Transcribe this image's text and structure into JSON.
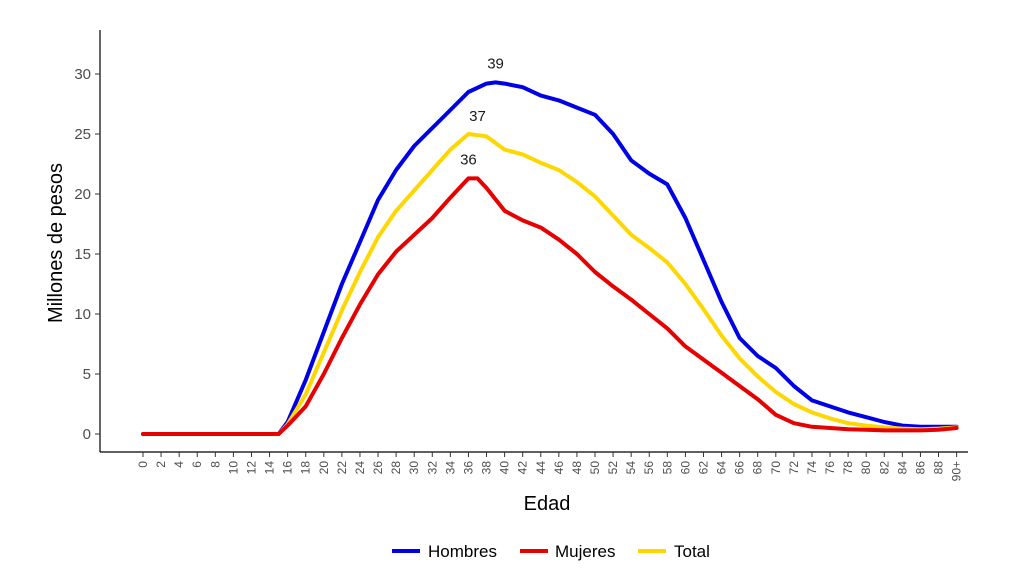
{
  "chart_data": {
    "type": "line",
    "xlabel": "Edad",
    "ylabel": "Millones de pesos",
    "ylim": [
      0,
      33
    ],
    "y_ticks": [
      0,
      5,
      10,
      15,
      20,
      25,
      30
    ],
    "x_tick_labels": [
      "0",
      "2",
      "4",
      "6",
      "8",
      "10",
      "12",
      "14",
      "16",
      "18",
      "20",
      "22",
      "24",
      "26",
      "28",
      "30",
      "32",
      "34",
      "36",
      "38",
      "40",
      "42",
      "44",
      "46",
      "48",
      "50",
      "52",
      "54",
      "56",
      "58",
      "60",
      "62",
      "64",
      "66",
      "68",
      "70",
      "72",
      "74",
      "76",
      "78",
      "80",
      "82",
      "84",
      "86",
      "88",
      "90+"
    ],
    "legend_position": "bottom",
    "grid": false,
    "series": [
      {
        "name": "Hombres",
        "color": "#0000e6",
        "points": [
          [
            0,
            0
          ],
          [
            2,
            0
          ],
          [
            4,
            0
          ],
          [
            6,
            0
          ],
          [
            8,
            0
          ],
          [
            10,
            0
          ],
          [
            12,
            0
          ],
          [
            14,
            0
          ],
          [
            15,
            0
          ],
          [
            16,
            1
          ],
          [
            18,
            4.5
          ],
          [
            20,
            8.5
          ],
          [
            22,
            12.5
          ],
          [
            24,
            16
          ],
          [
            26,
            19.5
          ],
          [
            28,
            22
          ],
          [
            30,
            24
          ],
          [
            32,
            25.5
          ],
          [
            34,
            27
          ],
          [
            36,
            28.5
          ],
          [
            38,
            29.2
          ],
          [
            39,
            29.3
          ],
          [
            40,
            29.2
          ],
          [
            42,
            28.9
          ],
          [
            44,
            28.2
          ],
          [
            46,
            27.8
          ],
          [
            48,
            27.2
          ],
          [
            50,
            26.6
          ],
          [
            52,
            25
          ],
          [
            54,
            22.8
          ],
          [
            56,
            21.7
          ],
          [
            58,
            20.8
          ],
          [
            60,
            18
          ],
          [
            62,
            14.5
          ],
          [
            64,
            11
          ],
          [
            66,
            8
          ],
          [
            68,
            6.5
          ],
          [
            70,
            5.5
          ],
          [
            72,
            4
          ],
          [
            74,
            2.8
          ],
          [
            76,
            2.3
          ],
          [
            78,
            1.8
          ],
          [
            80,
            1.4
          ],
          [
            82,
            1
          ],
          [
            84,
            0.7
          ],
          [
            86,
            0.6
          ],
          [
            88,
            0.6
          ],
          [
            90,
            0.6
          ]
        ]
      },
      {
        "name": "Mujeres",
        "color": "#e60000",
        "points": [
          [
            0,
            0
          ],
          [
            2,
            0
          ],
          [
            4,
            0
          ],
          [
            6,
            0
          ],
          [
            8,
            0
          ],
          [
            10,
            0
          ],
          [
            12,
            0
          ],
          [
            14,
            0
          ],
          [
            15,
            0
          ],
          [
            16,
            0.7
          ],
          [
            18,
            2.3
          ],
          [
            20,
            5
          ],
          [
            22,
            8
          ],
          [
            24,
            10.8
          ],
          [
            26,
            13.3
          ],
          [
            28,
            15.2
          ],
          [
            30,
            16.6
          ],
          [
            32,
            18
          ],
          [
            34,
            19.7
          ],
          [
            36,
            21.3
          ],
          [
            37,
            21.3
          ],
          [
            38,
            20.5
          ],
          [
            40,
            18.6
          ],
          [
            42,
            17.8
          ],
          [
            44,
            17.2
          ],
          [
            46,
            16.2
          ],
          [
            48,
            15
          ],
          [
            50,
            13.5
          ],
          [
            52,
            12.3
          ],
          [
            54,
            11.2
          ],
          [
            56,
            10
          ],
          [
            58,
            8.8
          ],
          [
            60,
            7.3
          ],
          [
            62,
            6.2
          ],
          [
            64,
            5.1
          ],
          [
            66,
            4
          ],
          [
            68,
            2.9
          ],
          [
            70,
            1.6
          ],
          [
            72,
            0.9
          ],
          [
            74,
            0.6
          ],
          [
            76,
            0.5
          ],
          [
            78,
            0.4
          ],
          [
            80,
            0.35
          ],
          [
            82,
            0.3
          ],
          [
            84,
            0.3
          ],
          [
            86,
            0.3
          ],
          [
            88,
            0.35
          ],
          [
            90,
            0.5
          ]
        ]
      },
      {
        "name": "Total",
        "color": "#ffd700",
        "points": [
          [
            0,
            0
          ],
          [
            2,
            0
          ],
          [
            4,
            0
          ],
          [
            6,
            0
          ],
          [
            8,
            0
          ],
          [
            10,
            0
          ],
          [
            12,
            0
          ],
          [
            14,
            0
          ],
          [
            15,
            0
          ],
          [
            16,
            0.8
          ],
          [
            18,
            3.3
          ],
          [
            20,
            6.8
          ],
          [
            22,
            10.3
          ],
          [
            24,
            13.5
          ],
          [
            26,
            16.4
          ],
          [
            28,
            18.6
          ],
          [
            30,
            20.3
          ],
          [
            32,
            22
          ],
          [
            34,
            23.7
          ],
          [
            36,
            25
          ],
          [
            37,
            24.9
          ],
          [
            38,
            24.8
          ],
          [
            40,
            23.7
          ],
          [
            42,
            23.3
          ],
          [
            44,
            22.6
          ],
          [
            46,
            22
          ],
          [
            48,
            21
          ],
          [
            50,
            19.8
          ],
          [
            52,
            18.2
          ],
          [
            54,
            16.6
          ],
          [
            56,
            15.5
          ],
          [
            58,
            14.3
          ],
          [
            60,
            12.5
          ],
          [
            62,
            10.4
          ],
          [
            64,
            8.2
          ],
          [
            66,
            6.3
          ],
          [
            68,
            4.8
          ],
          [
            70,
            3.5
          ],
          [
            72,
            2.5
          ],
          [
            74,
            1.8
          ],
          [
            76,
            1.3
          ],
          [
            78,
            0.9
          ],
          [
            80,
            0.7
          ],
          [
            82,
            0.55
          ],
          [
            84,
            0.45
          ],
          [
            86,
            0.4
          ],
          [
            88,
            0.45
          ],
          [
            90,
            0.55
          ]
        ]
      }
    ],
    "annotations": [
      {
        "text": "39",
        "x": 39,
        "y": 29.3,
        "series": "Hombres"
      },
      {
        "text": "37",
        "x": 37,
        "y": 24.9,
        "series": "Total"
      },
      {
        "text": "36",
        "x": 36,
        "y": 21.3,
        "series": "Mujeres"
      }
    ]
  }
}
